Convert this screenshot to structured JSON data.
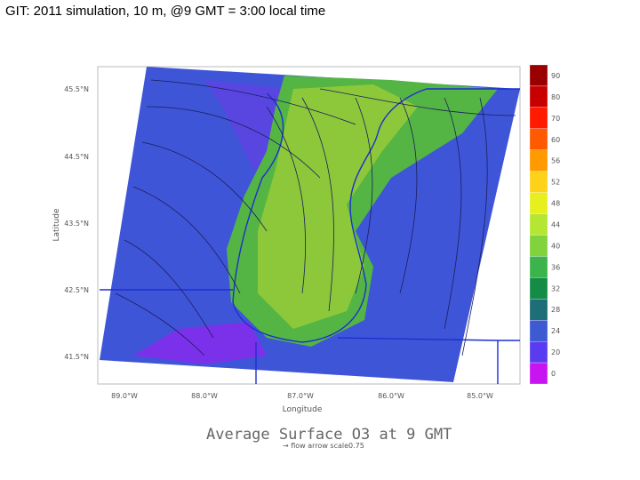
{
  "header": {
    "title": "GIT: 2011 simulation, 10 m, @9 GMT = 3:00 local time"
  },
  "map": {
    "title": "Average Surface O3 at 9 GMT",
    "subtitle": "→ flow arrow scale0.75",
    "x_label": "Longitude",
    "y_label": "Latitude",
    "lat_labels": [
      "45.5°N",
      "44.5°N",
      "43.5°N",
      "42.5°N",
      "41.5°N"
    ],
    "lon_labels": [
      "89.0°W",
      "88.0°W",
      "87.0°W",
      "86.0°W",
      "85.0°W"
    ]
  },
  "colorbar": {
    "levels": [
      90,
      80,
      70,
      60,
      56,
      52,
      48,
      44,
      40,
      36,
      32,
      28,
      24,
      20,
      0
    ],
    "colors": [
      "#9a0000",
      "#c80000",
      "#ff1a00",
      "#ff5a00",
      "#ff9a00",
      "#ffd21a",
      "#e6f01e",
      "#b4e632",
      "#82d23c",
      "#3cb44b",
      "#148c46",
      "#1e6e78",
      "#3c5ad2",
      "#5a3cf0",
      "#c814f0"
    ]
  }
}
